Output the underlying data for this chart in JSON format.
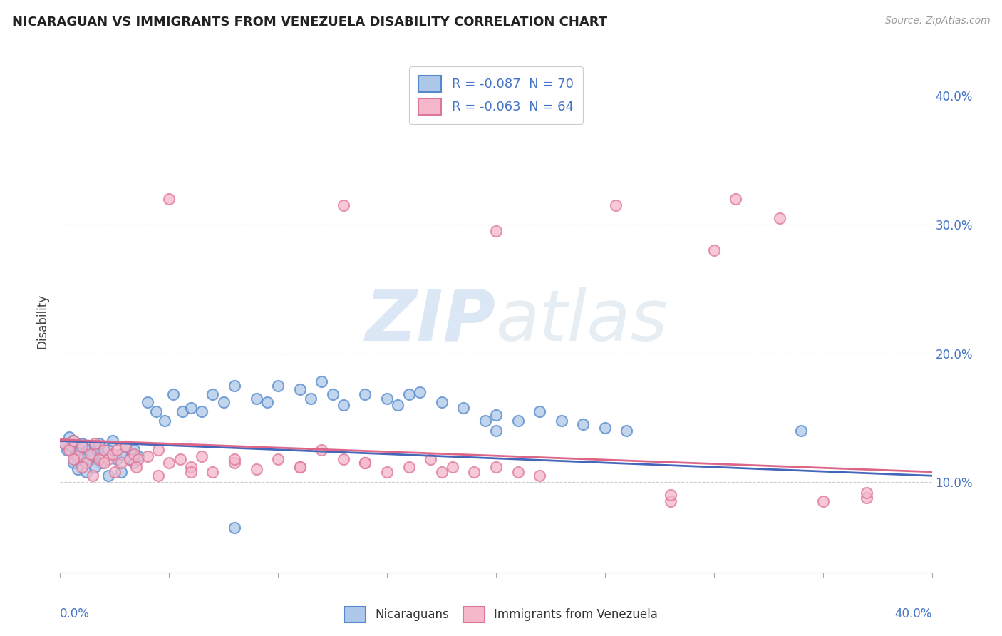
{
  "title": "NICARAGUAN VS IMMIGRANTS FROM VENEZUELA DISABILITY CORRELATION CHART",
  "source": "Source: ZipAtlas.com",
  "ylabel": "Disability",
  "legend_r1": "R = -0.087  N = 70",
  "legend_r2": "R = -0.063  N = 64",
  "blue_face": "#adc8e8",
  "blue_edge": "#5588cc",
  "pink_face": "#f5b8cb",
  "pink_edge": "#dd7799",
  "line_blue": "#4466bb",
  "line_pink": "#dd6688",
  "watermark_zip": "#d0dff0",
  "watermark_atlas": "#c8d8e8",
  "xlim": [
    0.0,
    0.4
  ],
  "ylim": [
    0.03,
    0.42
  ],
  "yticks": [
    0.1,
    0.2,
    0.3,
    0.4
  ],
  "ytick_labels": [
    "10.0%",
    "20.0%",
    "30.0%",
    "40.0%"
  ],
  "nic_x": [
    0.002,
    0.003,
    0.004,
    0.005,
    0.006,
    0.007,
    0.008,
    0.009,
    0.01,
    0.011,
    0.012,
    0.013,
    0.014,
    0.015,
    0.016,
    0.017,
    0.018,
    0.019,
    0.02,
    0.022,
    0.024,
    0.026,
    0.028,
    0.03,
    0.032,
    0.034,
    0.036,
    0.04,
    0.044,
    0.048,
    0.052,
    0.056,
    0.06,
    0.065,
    0.07,
    0.075,
    0.08,
    0.09,
    0.095,
    0.1,
    0.11,
    0.115,
    0.12,
    0.125,
    0.13,
    0.14,
    0.15,
    0.155,
    0.16,
    0.165,
    0.175,
    0.185,
    0.195,
    0.2,
    0.21,
    0.22,
    0.23,
    0.24,
    0.25,
    0.26,
    0.006,
    0.008,
    0.012,
    0.016,
    0.022,
    0.028,
    0.034,
    0.08,
    0.34,
    0.2
  ],
  "nic_y": [
    0.13,
    0.125,
    0.135,
    0.128,
    0.132,
    0.122,
    0.118,
    0.125,
    0.13,
    0.12,
    0.115,
    0.125,
    0.118,
    0.122,
    0.128,
    0.125,
    0.13,
    0.115,
    0.12,
    0.125,
    0.132,
    0.118,
    0.122,
    0.128,
    0.118,
    0.125,
    0.12,
    0.162,
    0.155,
    0.148,
    0.168,
    0.155,
    0.158,
    0.155,
    0.168,
    0.162,
    0.175,
    0.165,
    0.162,
    0.175,
    0.172,
    0.165,
    0.178,
    0.168,
    0.16,
    0.168,
    0.165,
    0.16,
    0.168,
    0.17,
    0.162,
    0.158,
    0.148,
    0.152,
    0.148,
    0.155,
    0.148,
    0.145,
    0.142,
    0.14,
    0.115,
    0.11,
    0.108,
    0.112,
    0.105,
    0.108,
    0.115,
    0.065,
    0.14,
    0.14
  ],
  "ven_x": [
    0.002,
    0.004,
    0.006,
    0.008,
    0.01,
    0.012,
    0.014,
    0.016,
    0.018,
    0.02,
    0.022,
    0.024,
    0.026,
    0.028,
    0.03,
    0.032,
    0.034,
    0.036,
    0.04,
    0.045,
    0.05,
    0.055,
    0.06,
    0.065,
    0.07,
    0.08,
    0.09,
    0.1,
    0.11,
    0.12,
    0.13,
    0.14,
    0.15,
    0.16,
    0.17,
    0.18,
    0.19,
    0.2,
    0.21,
    0.22,
    0.05,
    0.13,
    0.2,
    0.255,
    0.3,
    0.33,
    0.28,
    0.31,
    0.35,
    0.37,
    0.006,
    0.01,
    0.015,
    0.02,
    0.025,
    0.035,
    0.045,
    0.06,
    0.08,
    0.11,
    0.14,
    0.175,
    0.28,
    0.37
  ],
  "ven_y": [
    0.13,
    0.125,
    0.132,
    0.12,
    0.128,
    0.115,
    0.122,
    0.13,
    0.118,
    0.125,
    0.118,
    0.122,
    0.125,
    0.115,
    0.128,
    0.118,
    0.122,
    0.118,
    0.12,
    0.125,
    0.115,
    0.118,
    0.112,
    0.12,
    0.108,
    0.115,
    0.11,
    0.118,
    0.112,
    0.125,
    0.118,
    0.115,
    0.108,
    0.112,
    0.118,
    0.112,
    0.108,
    0.112,
    0.108,
    0.105,
    0.32,
    0.315,
    0.295,
    0.315,
    0.28,
    0.305,
    0.085,
    0.32,
    0.085,
    0.088,
    0.118,
    0.112,
    0.105,
    0.115,
    0.108,
    0.112,
    0.105,
    0.108,
    0.118,
    0.112,
    0.115,
    0.108,
    0.09,
    0.092
  ]
}
